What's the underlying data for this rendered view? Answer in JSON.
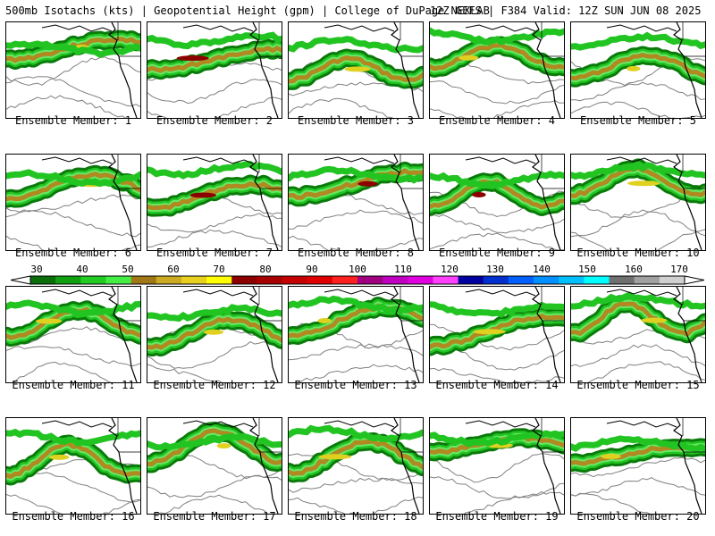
{
  "header": {
    "left_text": "500mb Isotachs (kts) | Geopotential Height (gpm) | College of DuPage NEXLAB",
    "right_text": "12Z GEFS | F384 Valid: 12Z SUN JUN 08 2025"
  },
  "members": [
    {
      "label": "Ensemble Member: 1"
    },
    {
      "label": "Ensemble Member: 2"
    },
    {
      "label": "Ensemble Member: 3"
    },
    {
      "label": "Ensemble Member: 4"
    },
    {
      "label": "Ensemble Member: 5"
    },
    {
      "label": "Ensemble Member: 6"
    },
    {
      "label": "Ensemble Member: 7"
    },
    {
      "label": "Ensemble Member: 8"
    },
    {
      "label": "Ensemble Member: 9"
    },
    {
      "label": "Ensemble Member: 10"
    },
    {
      "label": "Ensemble Member: 11"
    },
    {
      "label": "Ensemble Member: 12"
    },
    {
      "label": "Ensemble Member: 13"
    },
    {
      "label": "Ensemble Member: 14"
    },
    {
      "label": "Ensemble Member: 15"
    },
    {
      "label": "Ensemble Member: 16"
    },
    {
      "label": "Ensemble Member: 17"
    },
    {
      "label": "Ensemble Member: 18"
    },
    {
      "label": "Ensemble Member: 19"
    },
    {
      "label": "Ensemble Member: 20"
    }
  ],
  "colorbar": {
    "labels": [
      "30",
      "40",
      "50",
      "60",
      "70",
      "80",
      "90",
      "100",
      "110",
      "120",
      "130",
      "140",
      "150",
      "160",
      "170"
    ],
    "colors": [
      "#0a6e0a",
      "#11a011",
      "#22cc22",
      "#44ee44",
      "#a07818",
      "#ccaa22",
      "#e8d020",
      "#ffff00",
      "#8c0000",
      "#a80000",
      "#c40000",
      "#e00000",
      "#ff2020",
      "#a00080",
      "#c000c0",
      "#e000e0",
      "#ff40ff",
      "#0000a0",
      "#0030d0",
      "#0060ff",
      "#0090ff",
      "#00c0ff",
      "#00ffff",
      "#707070",
      "#a0a0a0",
      "#d0d0d0"
    ]
  },
  "palette": {
    "wind_dark": "#0a7a0a",
    "wind_mid": "#22c422",
    "wind_light": "#66e866",
    "wind_gold": "#b08a20",
    "wind_yellow": "#e0d020",
    "wind_red": "#8c0000",
    "height_contour": "#808080",
    "coastline": "#000000"
  }
}
